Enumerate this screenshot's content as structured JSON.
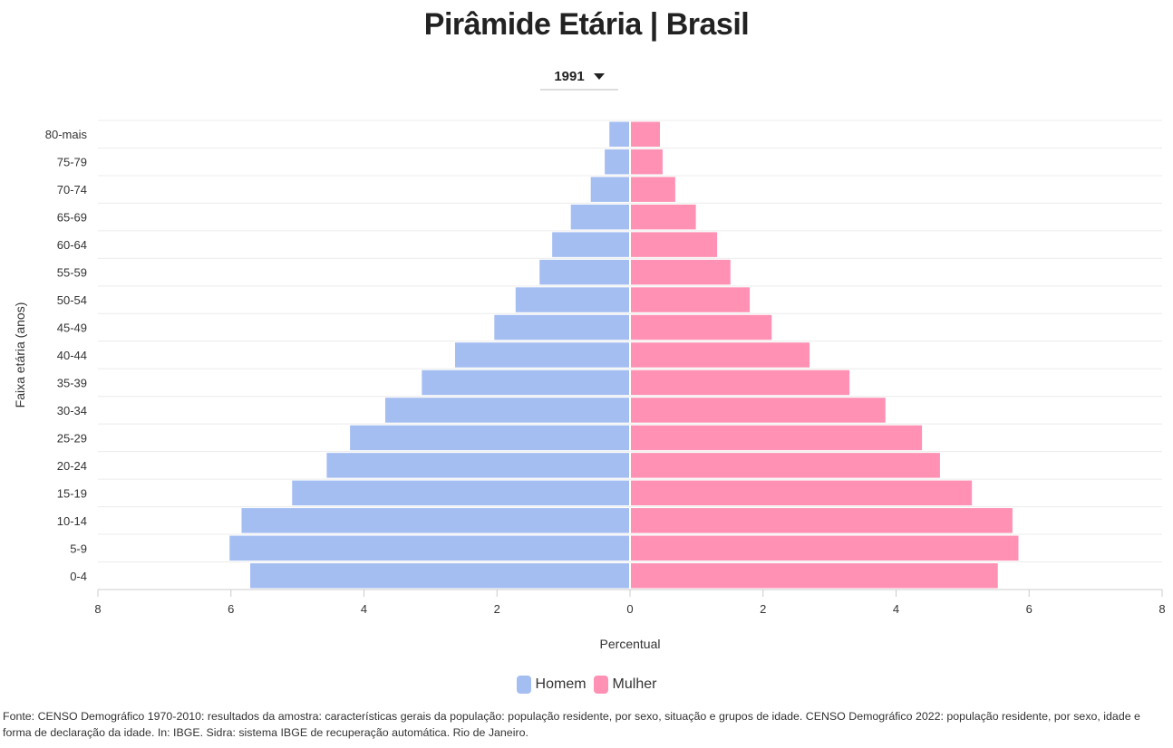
{
  "chart_data": {
    "type": "bar",
    "orientation": "horizontal",
    "subtype": "population-pyramid",
    "title": "Pirâmide Etária | Brasil",
    "xlabel": "Percentual",
    "ylabel": "Faixa etária (anos)",
    "xlim": [
      -8,
      8
    ],
    "xticks": [
      -8,
      -6,
      -4,
      -2,
      0,
      2,
      4,
      6,
      8
    ],
    "xtick_labels": [
      "8",
      "6",
      "4",
      "2",
      "0",
      "2",
      "4",
      "6",
      "8"
    ],
    "grid": true,
    "legend_position": "bottom",
    "categories": [
      "80-mais",
      "75-79",
      "70-74",
      "65-69",
      "60-64",
      "55-59",
      "50-54",
      "45-49",
      "40-44",
      "35-39",
      "30-34",
      "25-29",
      "20-24",
      "15-19",
      "10-14",
      "5-9",
      "0-4"
    ],
    "series": [
      {
        "name": "Homem",
        "color": "#a5bef2",
        "side": "left",
        "values": [
          0.31,
          0.38,
          0.59,
          0.89,
          1.17,
          1.36,
          1.72,
          2.04,
          2.63,
          3.13,
          3.68,
          4.21,
          4.56,
          5.08,
          5.84,
          6.02,
          5.71
        ]
      },
      {
        "name": "Mulher",
        "color": "#ff92b4",
        "side": "right",
        "values": [
          0.45,
          0.49,
          0.68,
          0.99,
          1.31,
          1.51,
          1.8,
          2.13,
          2.7,
          3.3,
          3.84,
          4.39,
          4.66,
          5.14,
          5.75,
          5.84,
          5.53
        ]
      }
    ]
  },
  "controls": {
    "year": "1991"
  },
  "source": "Fonte: CENSO Demográfico 1970-2010: resultados da amostra: características gerais da população: população residente, por sexo, situação e grupos de idade. CENSO Demográfico 2022: população residente, por sexo, idade e forma de declaração da idade. In: IBGE. Sidra: sistema IBGE de recuperação automática. Rio de Janeiro."
}
